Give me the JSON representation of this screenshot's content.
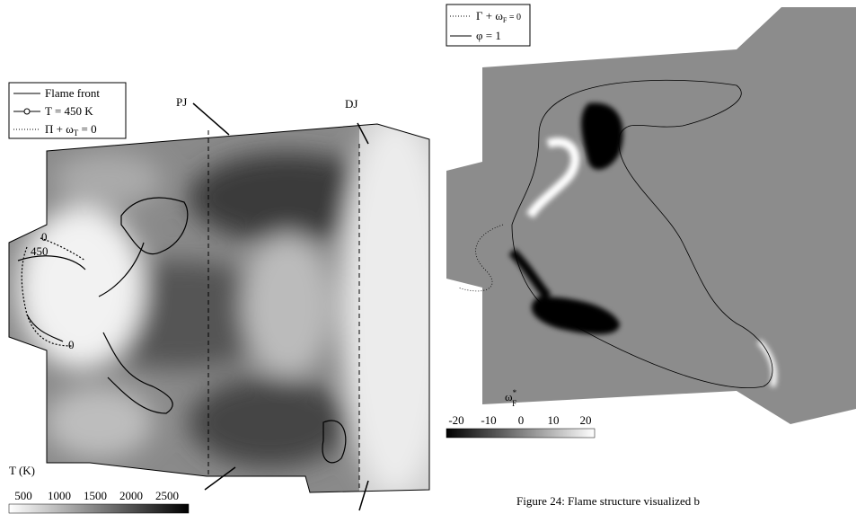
{
  "left_panel": {
    "legend": [
      {
        "text": "Flame front"
      },
      {
        "text": "T = 450 K"
      },
      {
        "text": "Π + ω",
        "sub": "T",
        "rest": " = 0"
      }
    ],
    "labels": {
      "pj": "PJ",
      "dj": "DJ",
      "contour_0_top": "0",
      "contour_450": "450",
      "contour_0_bottom": "0"
    },
    "colorbar": {
      "title": "T (K)",
      "ticks": [
        500,
        1000,
        1500,
        2000,
        2500
      ]
    }
  },
  "right_panel": {
    "legend": [
      {
        "text": "Γ + ω",
        "sub": "F",
        "rest": " = 0"
      },
      {
        "text": "φ = 1"
      }
    ],
    "colorbar": {
      "title": "ω",
      "sup": "*",
      "sub": "F",
      "ticks": [
        -20,
        -10,
        0,
        10,
        20
      ]
    }
  },
  "caption": "Figure 24: Flame structure visualized b"
}
